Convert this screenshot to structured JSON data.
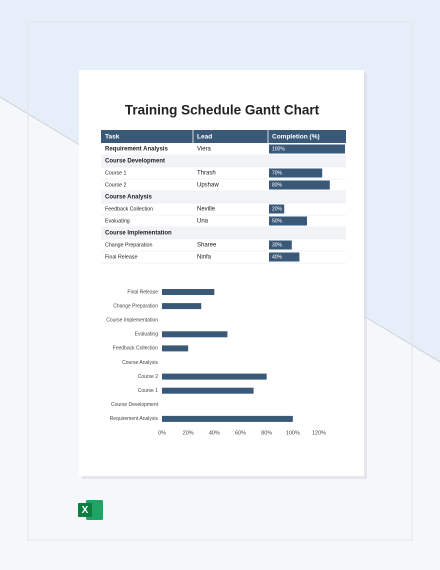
{
  "document": {
    "title": "Training Schedule Gantt Chart"
  },
  "table": {
    "headers": [
      "Task",
      "Lead",
      "Completion (%)"
    ],
    "rows": [
      {
        "task": "Requirement Analysis",
        "bold": true,
        "lead": "Viera",
        "completion": {
          "value": 100,
          "label": "100%"
        }
      },
      {
        "task": "Course Development",
        "bold": true
      },
      {
        "task": "Course 1",
        "lead": "Thrash",
        "completion": {
          "value": 70,
          "label": "70%"
        }
      },
      {
        "task": "Course 2",
        "lead": "Upshaw",
        "completion": {
          "value": 80,
          "label": "80%"
        }
      },
      {
        "task": "Course Analysis",
        "bold": true
      },
      {
        "task": "Feedback Collection",
        "lead": "Neville",
        "completion": {
          "value": 20,
          "label": "20%"
        }
      },
      {
        "task": "Evaluating",
        "lead": "Una",
        "completion": {
          "value": 50,
          "label": "50%"
        }
      },
      {
        "task": "Course Implementation",
        "bold": true
      },
      {
        "task": "Change Preparation",
        "lead": "Sharee",
        "completion": {
          "value": 30,
          "label": "30%"
        }
      },
      {
        "task": "Final Release",
        "lead": "Ninfa",
        "completion": {
          "value": 40,
          "label": "40%"
        }
      }
    ]
  },
  "chart_data": {
    "type": "barh",
    "color": "#3a5878",
    "categories": [
      "Requirement Analysis",
      "Course Development",
      "Course 1",
      "Course 2",
      "Course Analysis",
      "Feedback Collection",
      "Evaluating",
      "Course Implementation",
      "Change Preparation",
      "Final Release"
    ],
    "values": [
      100,
      null,
      70,
      80,
      null,
      20,
      50,
      null,
      30,
      40
    ],
    "xlim": [
      0,
      120
    ],
    "xticks": [
      {
        "value": 0,
        "label": "0%"
      },
      {
        "value": 20,
        "label": "20%"
      },
      {
        "value": 40,
        "label": "40%"
      },
      {
        "value": 60,
        "label": "60%"
      },
      {
        "value": 80,
        "label": "80%"
      },
      {
        "value": 100,
        "label": "100%"
      },
      {
        "value": 120,
        "label": "120%"
      }
    ]
  }
}
